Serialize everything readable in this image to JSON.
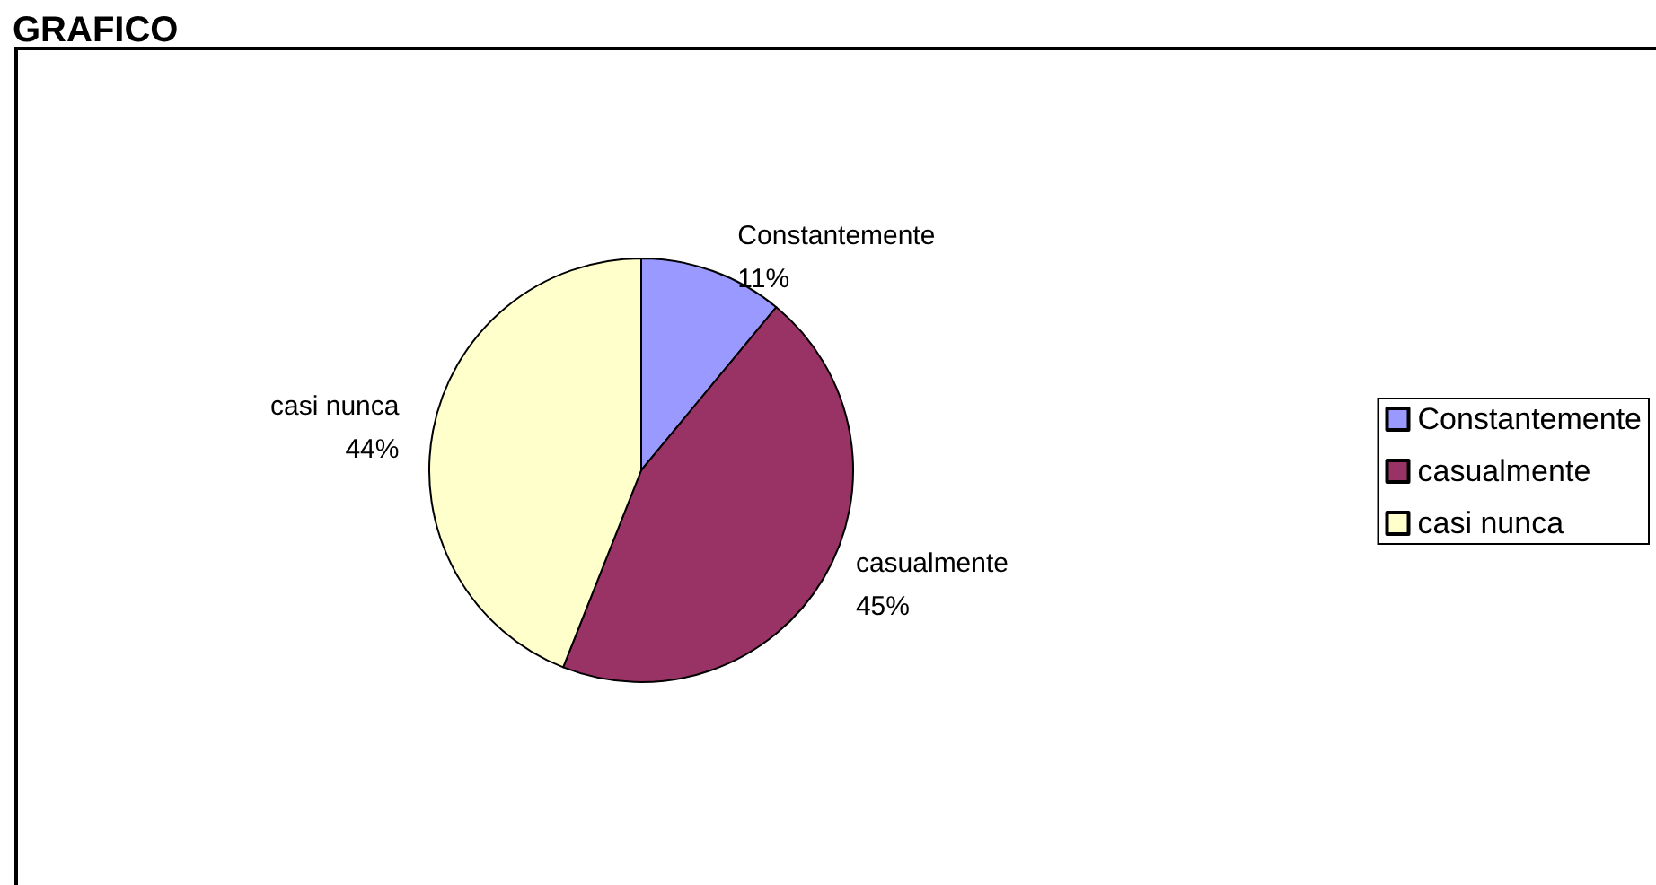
{
  "chart_data": {
    "type": "pie",
    "title": "GRAFICO",
    "categories": [
      "Constantemente",
      "casualmente",
      "casi nunca"
    ],
    "values": [
      11,
      45,
      44
    ],
    "value_labels": [
      "11%",
      "45%",
      "44%"
    ],
    "colors": [
      "#9999ff",
      "#993366",
      "#ffffcc"
    ],
    "legend": "right"
  }
}
